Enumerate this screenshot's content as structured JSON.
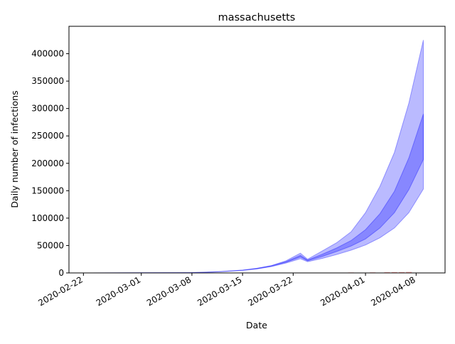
{
  "chart_data": {
    "type": "area",
    "title": "massachusetts",
    "xlabel": "Date",
    "ylabel": "Daily number of infections",
    "x_range": [
      "2020-02-20",
      "2020-04-12"
    ],
    "ylim": [
      0,
      450000
    ],
    "x_ticks": [
      "2020-02-22",
      "2020-03-01",
      "2020-03-08",
      "2020-03-15",
      "2020-03-22",
      "2020-04-01",
      "2020-04-08"
    ],
    "y_ticks": [
      0,
      50000,
      100000,
      150000,
      200000,
      250000,
      300000,
      350000,
      400000
    ],
    "y_tick_labels": [
      "0",
      "50000",
      "100000",
      "150000",
      "200000",
      "250000",
      "300000",
      "350000",
      "400000"
    ],
    "grid": false,
    "colors": {
      "band_outer": "#0000ff",
      "band_outer_opacity": 0.27,
      "band_inner": "#0000ff",
      "band_inner_opacity": 0.27,
      "observed": "#ff0000"
    },
    "series": [
      {
        "role": "outer_band_95",
        "x": [
          "2020-02-23",
          "2020-03-01",
          "2020-03-08",
          "2020-03-10",
          "2020-03-12",
          "2020-03-15",
          "2020-03-17",
          "2020-03-19",
          "2020-03-21",
          "2020-03-23",
          "2020-03-24",
          "2020-03-26",
          "2020-03-28",
          "2020-03-30",
          "2020-04-01",
          "2020-04-03",
          "2020-04-05",
          "2020-04-07",
          "2020-04-09"
        ],
        "lower": [
          0,
          200,
          600,
          1200,
          2200,
          4500,
          7200,
          11500,
          18000,
          26000,
          20500,
          26500,
          33500,
          41500,
          51000,
          64000,
          82000,
          110000,
          153000
        ],
        "upper": [
          0,
          200,
          700,
          1400,
          2600,
          5200,
          8500,
          13500,
          22000,
          36000,
          25000,
          40000,
          55000,
          75000,
          110000,
          158000,
          220000,
          310000,
          425000
        ]
      },
      {
        "role": "inner_band_50",
        "x": [
          "2020-02-23",
          "2020-03-01",
          "2020-03-08",
          "2020-03-10",
          "2020-03-12",
          "2020-03-15",
          "2020-03-17",
          "2020-03-19",
          "2020-03-21",
          "2020-03-23",
          "2020-03-24",
          "2020-03-26",
          "2020-03-28",
          "2020-03-30",
          "2020-04-01",
          "2020-04-03",
          "2020-04-05",
          "2020-04-07",
          "2020-04-09"
        ],
        "lower": [
          0,
          200,
          650,
          1300,
          2400,
          4800,
          7800,
          12500,
          19500,
          29000,
          22000,
          30000,
          39000,
          49000,
          62000,
          82000,
          110000,
          152000,
          207000
        ],
        "upper": [
          0,
          200,
          680,
          1350,
          2500,
          5000,
          8100,
          13000,
          20500,
          32000,
          23500,
          34000,
          45500,
          59000,
          79000,
          108000,
          149000,
          210000,
          290000
        ]
      },
      {
        "role": "observed",
        "x": [
          "2020-03-23",
          "2020-03-26",
          "2020-03-30",
          "2020-04-02",
          "2020-04-04",
          "2020-04-05",
          "2020-04-06",
          "2020-04-07"
        ],
        "values": [
          500,
          700,
          900,
          1100,
          1300,
          1500,
          1600,
          1800
        ]
      }
    ]
  }
}
